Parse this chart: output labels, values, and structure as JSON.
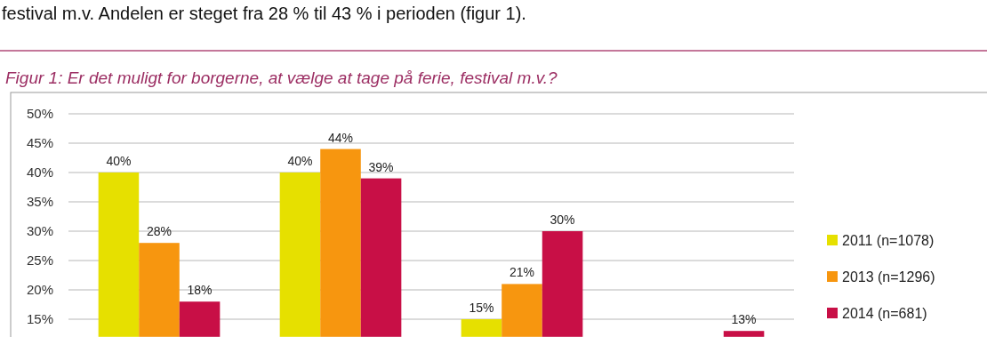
{
  "chart_data": {
    "type": "bar",
    "title": "Figur 1: Er det muligt for borgerne, at vælge at tage på ferie, festival m.v.?",
    "annotations": [
      "festival m.v. Andelen er steget fra 28 % til 43 % i perioden (figur 1)."
    ],
    "categories": [
      null,
      null,
      null,
      null
    ],
    "series": [
      {
        "name": "2011 (n=1078)",
        "color": "#e6e000",
        "values": [
          40,
          40,
          15,
          null
        ],
        "value_labels": [
          "40%",
          "40%",
          "15%",
          null
        ]
      },
      {
        "name": "2013 (n=1296)",
        "color": "#f7960f",
        "values": [
          28,
          44,
          21,
          null
        ],
        "value_labels": [
          "28%",
          "44%",
          "21%",
          null
        ]
      },
      {
        "name": "2014 (n=681)",
        "color": "#c80f46",
        "values": [
          18,
          39,
          30,
          13
        ],
        "value_labels": [
          "18%",
          "39%",
          "30%",
          "13%"
        ]
      }
    ],
    "ylim": [
      12,
      50
    ],
    "yticks": [
      {
        "value": 15,
        "label": "15%"
      },
      {
        "value": 20,
        "label": "20%"
      },
      {
        "value": 25,
        "label": "25%"
      },
      {
        "value": 30,
        "label": "30%"
      },
      {
        "value": 35,
        "label": "35%"
      },
      {
        "value": 40,
        "label": "40%"
      },
      {
        "value": 45,
        "label": "45%"
      },
      {
        "value": 50,
        "label": "50%"
      }
    ],
    "grid": "y",
    "legend": "right"
  }
}
